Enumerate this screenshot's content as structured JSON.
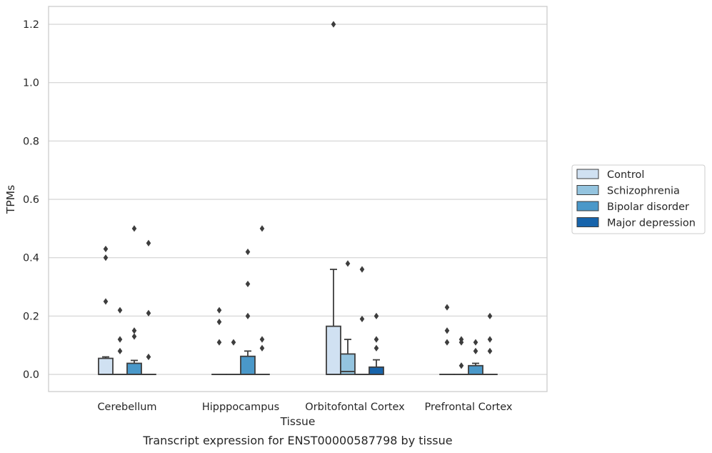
{
  "caption": "Transcript expression for ENST00000587798 by tissue",
  "chart_data": {
    "type": "box",
    "title": "",
    "xlabel": "Tissue",
    "ylabel": "TPMs",
    "ylim": [
      -0.06,
      1.26
    ],
    "yticks": [
      0.0,
      0.2,
      0.4,
      0.6,
      0.8,
      1.0,
      1.2
    ],
    "ytick_labels": [
      "0.0",
      "0.2",
      "0.4",
      "0.6",
      "0.8",
      "1.0",
      "1.2"
    ],
    "categories": [
      "Cerebellum",
      "Hipppocampus",
      "Orbitofontal Cortex",
      "Prefrontal Cortex"
    ],
    "grid": "horizontal",
    "legend_position": "right",
    "series": [
      {
        "name": "Control",
        "color": "#d0e1f2",
        "boxes": [
          {
            "q1": 0.0,
            "median": 0.0,
            "q3": 0.055,
            "whisker_low": 0.0,
            "whisker_high": 0.06,
            "outliers": [
              0.43,
              0.4,
              0.25
            ]
          },
          {
            "q1": 0.0,
            "median": 0.0,
            "q3": 0.0,
            "whisker_low": 0.0,
            "whisker_high": 0.0,
            "outliers": [
              0.22,
              0.18,
              0.11
            ]
          },
          {
            "q1": 0.0,
            "median": 0.0,
            "q3": 0.165,
            "whisker_low": 0.0,
            "whisker_high": 0.36,
            "outliers": [
              1.2
            ]
          },
          {
            "q1": 0.0,
            "median": 0.0,
            "q3": 0.0,
            "whisker_low": 0.0,
            "whisker_high": 0.0,
            "outliers": [
              0.23,
              0.15,
              0.11
            ]
          }
        ]
      },
      {
        "name": "Schizophrenia",
        "color": "#94c4df",
        "boxes": [
          {
            "q1": 0.0,
            "median": 0.0,
            "q3": 0.0,
            "whisker_low": 0.0,
            "whisker_high": 0.0,
            "outliers": [
              0.22,
              0.12,
              0.08
            ]
          },
          {
            "q1": 0.0,
            "median": 0.0,
            "q3": 0.0,
            "whisker_low": 0.0,
            "whisker_high": 0.0,
            "outliers": [
              0.11
            ]
          },
          {
            "q1": 0.0,
            "median": 0.01,
            "q3": 0.07,
            "whisker_low": 0.0,
            "whisker_high": 0.12,
            "outliers": [
              0.38
            ]
          },
          {
            "q1": 0.0,
            "median": 0.0,
            "q3": 0.0,
            "whisker_low": 0.0,
            "whisker_high": 0.0,
            "outliers": [
              0.12,
              0.11,
              0.03
            ]
          }
        ]
      },
      {
        "name": "Bipolar disorder",
        "color": "#4a98c9",
        "boxes": [
          {
            "q1": 0.0,
            "median": 0.0,
            "q3": 0.038,
            "whisker_low": 0.0,
            "whisker_high": 0.048,
            "outliers": [
              0.5,
              0.15,
              0.13
            ]
          },
          {
            "q1": 0.0,
            "median": 0.0,
            "q3": 0.062,
            "whisker_low": 0.0,
            "whisker_high": 0.08,
            "outliers": [
              0.42,
              0.31,
              0.2
            ]
          },
          {
            "q1": 0.0,
            "median": 0.0,
            "q3": 0.0,
            "whisker_low": 0.0,
            "whisker_high": 0.0,
            "outliers": [
              0.36,
              0.19
            ]
          },
          {
            "q1": 0.0,
            "median": 0.0,
            "q3": 0.03,
            "whisker_low": 0.0,
            "whisker_high": 0.038,
            "outliers": [
              0.11,
              0.08
            ]
          }
        ]
      },
      {
        "name": "Major depression",
        "color": "#1764ab",
        "boxes": [
          {
            "q1": 0.0,
            "median": 0.0,
            "q3": 0.0,
            "whisker_low": 0.0,
            "whisker_high": 0.0,
            "outliers": [
              0.45,
              0.21,
              0.06
            ]
          },
          {
            "q1": 0.0,
            "median": 0.0,
            "q3": 0.0,
            "whisker_low": 0.0,
            "whisker_high": 0.0,
            "outliers": [
              0.5,
              0.12,
              0.09
            ]
          },
          {
            "q1": 0.0,
            "median": 0.0,
            "q3": 0.025,
            "whisker_low": 0.0,
            "whisker_high": 0.05,
            "outliers": [
              0.2,
              0.12,
              0.09
            ]
          },
          {
            "q1": 0.0,
            "median": 0.0,
            "q3": 0.0,
            "whisker_low": 0.0,
            "whisker_high": 0.0,
            "outliers": [
              0.2,
              0.12,
              0.08
            ]
          }
        ]
      }
    ]
  }
}
